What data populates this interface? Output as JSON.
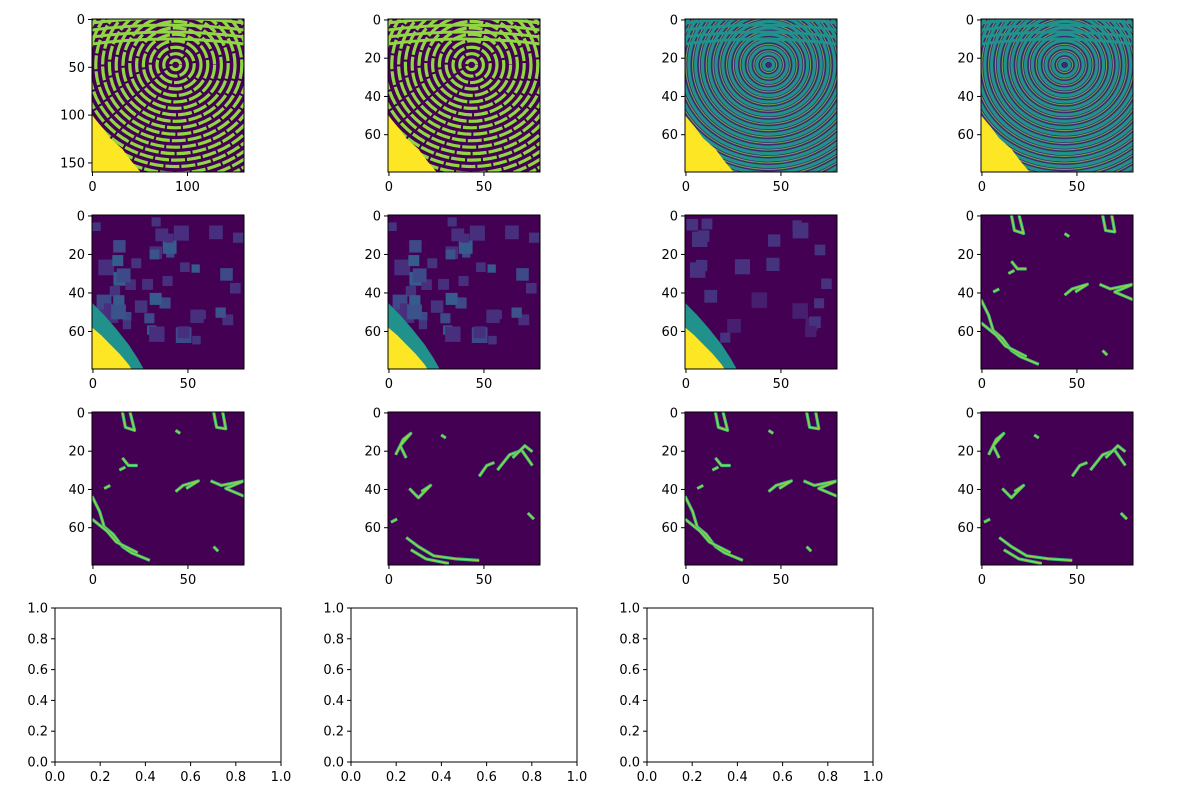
{
  "chart_data": [
    {
      "type": "heatmap",
      "image": "fingerprint",
      "cmap": "viridis",
      "xlim": [
        -0.5,
        159.5
      ],
      "ylim": [
        159.5,
        -0.5
      ],
      "xticks": [
        0,
        100
      ],
      "yticks": [
        0,
        50,
        100,
        150
      ],
      "xtick_labels": [
        "0",
        "100"
      ],
      "ytick_labels": [
        "0",
        "50",
        "100",
        "150"
      ]
    },
    {
      "type": "heatmap",
      "image": "fingerprint",
      "cmap": "viridis",
      "xlim": [
        -0.5,
        79.5
      ],
      "ylim": [
        79.5,
        -0.5
      ],
      "xticks": [
        0,
        50
      ],
      "yticks": [
        0,
        20,
        40,
        60
      ],
      "xtick_labels": [
        "0",
        "50"
      ],
      "ytick_labels": [
        "0",
        "20",
        "40",
        "60"
      ]
    },
    {
      "type": "heatmap",
      "image": "fingerprint-smooth",
      "cmap": "viridis",
      "xlim": [
        -0.5,
        79.5
      ],
      "ylim": [
        79.5,
        -0.5
      ],
      "xticks": [
        0,
        50
      ],
      "yticks": [
        0,
        20,
        40,
        60
      ],
      "xtick_labels": [
        "0",
        "50"
      ],
      "ytick_labels": [
        "0",
        "20",
        "40",
        "60"
      ]
    },
    {
      "type": "heatmap",
      "image": "fingerprint-smooth",
      "cmap": "viridis",
      "xlim": [
        -0.5,
        79.5
      ],
      "ylim": [
        79.5,
        -0.5
      ],
      "xticks": [
        0,
        50
      ],
      "yticks": [
        0,
        20,
        40,
        60
      ],
      "xtick_labels": [
        "0",
        "50"
      ],
      "ytick_labels": [
        "0",
        "20",
        "40",
        "60"
      ]
    },
    {
      "type": "heatmap",
      "image": "blocks",
      "cmap": "viridis",
      "xlim": [
        -0.5,
        79.5
      ],
      "ylim": [
        79.5,
        -0.5
      ],
      "xticks": [
        0,
        50
      ],
      "yticks": [
        0,
        20,
        40,
        60
      ],
      "xtick_labels": [
        "0",
        "50"
      ],
      "ytick_labels": [
        "0",
        "20",
        "40",
        "60"
      ]
    },
    {
      "type": "heatmap",
      "image": "blocks",
      "cmap": "viridis",
      "xlim": [
        -0.5,
        79.5
      ],
      "ylim": [
        79.5,
        -0.5
      ],
      "xticks": [
        0,
        50
      ],
      "yticks": [
        0,
        20,
        40,
        60
      ],
      "xtick_labels": [
        "0",
        "50"
      ],
      "ytick_labels": [
        "0",
        "20",
        "40",
        "60"
      ]
    },
    {
      "type": "heatmap",
      "image": "blocks-faint",
      "cmap": "viridis",
      "xlim": [
        -0.5,
        79.5
      ],
      "ylim": [
        79.5,
        -0.5
      ],
      "xticks": [
        0,
        50
      ],
      "yticks": [
        0,
        20,
        40,
        60
      ],
      "xtick_labels": [
        "0",
        "50"
      ],
      "ytick_labels": [
        "0",
        "20",
        "40",
        "60"
      ]
    },
    {
      "type": "heatmap",
      "image": "edges-a",
      "cmap": "viridis",
      "xlim": [
        -0.5,
        79.5
      ],
      "ylim": [
        79.5,
        -0.5
      ],
      "xticks": [
        0,
        50
      ],
      "yticks": [
        0,
        20,
        40,
        60
      ],
      "xtick_labels": [
        "0",
        "50"
      ],
      "ytick_labels": [
        "0",
        "20",
        "40",
        "60"
      ]
    },
    {
      "type": "heatmap",
      "image": "edges-a",
      "cmap": "viridis",
      "xlim": [
        -0.5,
        79.5
      ],
      "ylim": [
        79.5,
        -0.5
      ],
      "xticks": [
        0,
        50
      ],
      "yticks": [
        0,
        20,
        40,
        60
      ],
      "xtick_labels": [
        "0",
        "50"
      ],
      "ytick_labels": [
        "0",
        "20",
        "40",
        "60"
      ]
    },
    {
      "type": "heatmap",
      "image": "edges-b",
      "cmap": "viridis",
      "xlim": [
        -0.5,
        79.5
      ],
      "ylim": [
        79.5,
        -0.5
      ],
      "xticks": [
        0,
        50
      ],
      "yticks": [
        0,
        20,
        40,
        60
      ],
      "xtick_labels": [
        "0",
        "50"
      ],
      "ytick_labels": [
        "0",
        "20",
        "40",
        "60"
      ]
    },
    {
      "type": "heatmap",
      "image": "edges-a",
      "cmap": "viridis",
      "xlim": [
        -0.5,
        79.5
      ],
      "ylim": [
        79.5,
        -0.5
      ],
      "xticks": [
        0,
        50
      ],
      "yticks": [
        0,
        20,
        40,
        60
      ],
      "xtick_labels": [
        "0",
        "50"
      ],
      "ytick_labels": [
        "0",
        "20",
        "40",
        "60"
      ]
    },
    {
      "type": "heatmap",
      "image": "edges-b",
      "cmap": "viridis",
      "xlim": [
        -0.5,
        79.5
      ],
      "ylim": [
        79.5,
        -0.5
      ],
      "xticks": [
        0,
        50
      ],
      "yticks": [
        0,
        20,
        40,
        60
      ],
      "xtick_labels": [
        "0",
        "50"
      ],
      "ytick_labels": [
        "0",
        "20",
        "40",
        "60"
      ]
    },
    {
      "type": "scatter",
      "image": "",
      "xlim": [
        0,
        1
      ],
      "ylim": [
        0,
        1
      ],
      "xticks": [
        0,
        0.2,
        0.4,
        0.6,
        0.8,
        1.0
      ],
      "yticks": [
        0,
        0.2,
        0.4,
        0.6,
        0.8,
        1.0
      ],
      "xtick_labels": [
        "0.0",
        "0.2",
        "0.4",
        "0.6",
        "0.8",
        "1.0"
      ],
      "ytick_labels": [
        "0.0",
        "0.2",
        "0.4",
        "0.6",
        "0.8",
        "1.0"
      ]
    },
    {
      "type": "scatter",
      "image": "",
      "xlim": [
        0,
        1
      ],
      "ylim": [
        0,
        1
      ],
      "xticks": [
        0,
        0.2,
        0.4,
        0.6,
        0.8,
        1.0
      ],
      "yticks": [
        0,
        0.2,
        0.4,
        0.6,
        0.8,
        1.0
      ],
      "xtick_labels": [
        "0.0",
        "0.2",
        "0.4",
        "0.6",
        "0.8",
        "1.0"
      ],
      "ytick_labels": [
        "0.0",
        "0.2",
        "0.4",
        "0.6",
        "0.8",
        "1.0"
      ]
    },
    {
      "type": "scatter",
      "image": "",
      "xlim": [
        0,
        1
      ],
      "ylim": [
        0,
        1
      ],
      "xticks": [
        0,
        0.2,
        0.4,
        0.6,
        0.8,
        1.0
      ],
      "yticks": [
        0,
        0.2,
        0.4,
        0.6,
        0.8,
        1.0
      ],
      "xtick_labels": [
        "0.0",
        "0.2",
        "0.4",
        "0.6",
        "0.8",
        "1.0"
      ],
      "ytick_labels": [
        "0.0",
        "0.2",
        "0.4",
        "0.6",
        "0.8",
        "1.0"
      ]
    }
  ],
  "colors": {
    "viridis_dark": "#440154",
    "viridis_blue": "#31688e",
    "viridis_teal": "#21918c",
    "viridis_green": "#35b779",
    "viridis_lime": "#90d743",
    "viridis_yellow": "#fde725"
  }
}
